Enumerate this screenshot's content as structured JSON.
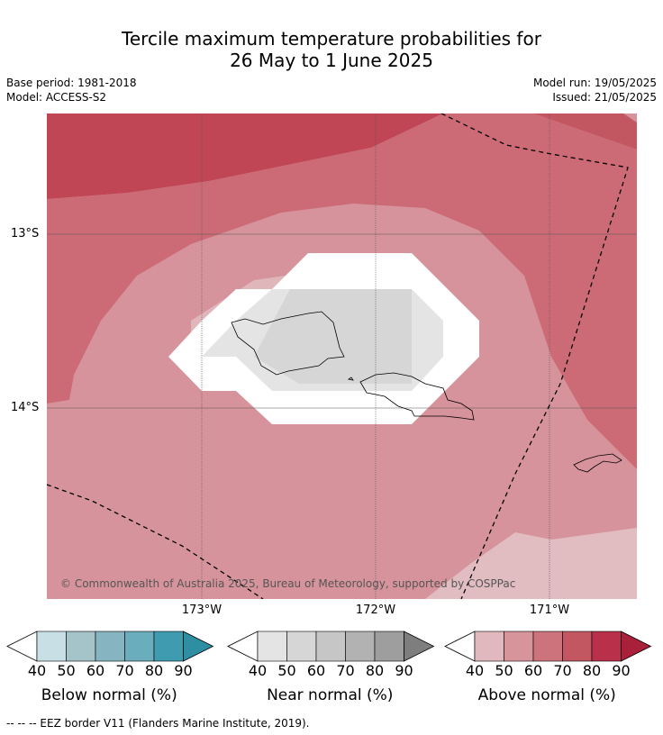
{
  "title_line1": "Tercile maximum temperature probabilities for",
  "title_line2": "26 May to 1 June 2025",
  "base_period": "Base period: 1981-2018",
  "model": "Model: ACCESS-S2",
  "model_run": "Model run: 19/05/2025",
  "issued": "Issued: 21/05/2025",
  "lat_labels": [
    "13°S",
    "14°S"
  ],
  "lon_labels": [
    "173°W",
    "172°W",
    "171°W"
  ],
  "copyright": "© Commonwealth of Australia 2025, Bureau of Meteorology, supported by COSPPac",
  "footer": "--  --  -- EEZ border V11 (Flanders Marine Institute, 2019).",
  "colorbars": [
    {
      "label": "Below normal (%)",
      "ticks": [
        "40",
        "50",
        "60",
        "70",
        "80",
        "90"
      ],
      "colors": [
        "#ffffff",
        "#c8dfe5",
        "#a4c4ca",
        "#86b4c0",
        "#6aadbc",
        "#3f9cb0",
        "#2e8fa3"
      ]
    },
    {
      "label": "Near normal (%)",
      "ticks": [
        "40",
        "50",
        "60",
        "70",
        "80",
        "90"
      ],
      "colors": [
        "#ffffff",
        "#e4e4e4",
        "#d6d6d6",
        "#c6c6c6",
        "#b2b2b2",
        "#9e9e9e",
        "#7e7e7e"
      ]
    },
    {
      "label": "Above normal (%)",
      "ticks": [
        "40",
        "50",
        "60",
        "70",
        "80",
        "90"
      ],
      "colors": [
        "#ffffff",
        "#e1b8bd",
        "#d7959b",
        "#cc737c",
        "#c25762",
        "#b9304a",
        "#a9203a"
      ]
    }
  ]
}
